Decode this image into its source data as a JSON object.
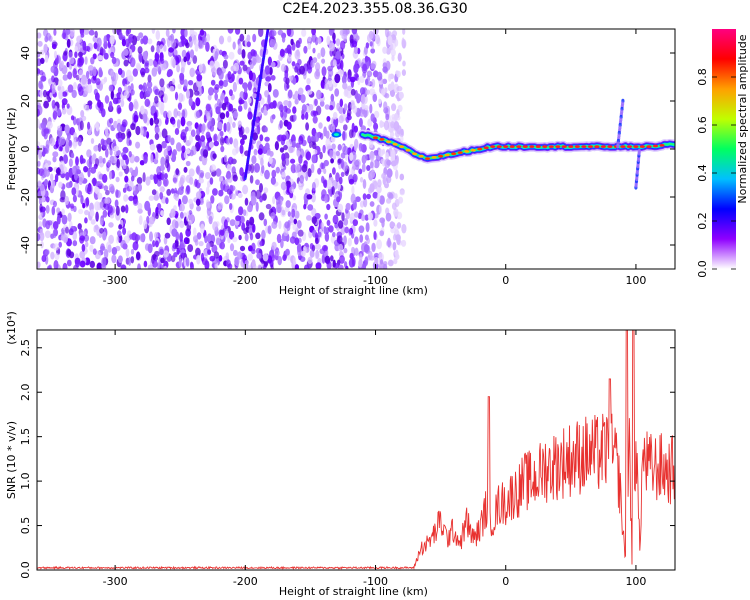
{
  "title": "C2E4.2023.355.08.36.G30",
  "chart_data": [
    {
      "type": "heatmap",
      "xlabel": "Height of straight line (km)",
      "ylabel": "Frequency (Hz)",
      "xlim": [
        -360,
        130
      ],
      "ylim": [
        -50,
        50
      ],
      "x_ticks": [
        -300,
        -200,
        -100,
        0,
        100
      ],
      "y_ticks": [
        -40,
        -20,
        0,
        20,
        40
      ],
      "colorbar": {
        "label": "Normalized spectral amplitude",
        "range": [
          0,
          1
        ],
        "ticks": [
          "0.0",
          "0.2",
          "0.4",
          "0.6",
          "0.8"
        ],
        "colormap": [
          "#ffffff",
          "#8f00ff",
          "#0000ff",
          "#00c0ff",
          "#00ff60",
          "#c0ff00",
          "#ffa000",
          "#ff0000",
          "#ff0080"
        ]
      },
      "features": {
        "noise_region_x": [
          -360,
          -90
        ],
        "signal_line": [
          [
            -110,
            6
          ],
          [
            -95,
            4
          ],
          [
            -80,
            1
          ],
          [
            -70,
            -2
          ],
          [
            -60,
            -4
          ],
          [
            -50,
            -3
          ],
          [
            -40,
            -2
          ],
          [
            -30,
            -1
          ],
          [
            -20,
            0
          ],
          [
            -10,
            1
          ],
          [
            0,
            1
          ],
          [
            20,
            1
          ],
          [
            40,
            1
          ],
          [
            60,
            1
          ],
          [
            80,
            1
          ],
          [
            95,
            1
          ],
          [
            110,
            1
          ],
          [
            130,
            2
          ]
        ],
        "spike_x": [
          90,
          100
        ]
      }
    },
    {
      "type": "line",
      "xlabel": "Height of straight line (km)",
      "ylabel": "SNR (10 * v/v)",
      "y_scale_label": "(x10⁴)",
      "xlim": [
        -360,
        130
      ],
      "ylim": [
        0,
        2.7
      ],
      "x_ticks": [
        -300,
        -200,
        -100,
        0,
        100
      ],
      "y_ticks": [
        "0.0",
        "0.5",
        "1.0",
        "1.5",
        "2.0",
        "2.5"
      ],
      "series": [
        {
          "color": "#e8312f",
          "x": [
            -360,
            -300,
            -250,
            -200,
            -150,
            -100,
            -80,
            -70,
            -65,
            -60,
            -55,
            -50,
            -45,
            -40,
            -35,
            -30,
            -25,
            -20,
            -15,
            -10,
            -5,
            0,
            5,
            10,
            15,
            20,
            25,
            30,
            35,
            40,
            50,
            60,
            70,
            80,
            85,
            88,
            90,
            92,
            95,
            97,
            100,
            103,
            105,
            110,
            115,
            120,
            125,
            130
          ],
          "y": [
            0.02,
            0.02,
            0.02,
            0.02,
            0.02,
            0.02,
            0.02,
            0.05,
            0.25,
            0.3,
            0.4,
            0.55,
            0.35,
            0.45,
            0.3,
            0.55,
            0.35,
            0.45,
            0.7,
            0.55,
            0.75,
            0.75,
            0.85,
            0.9,
            1.0,
            1.0,
            1.05,
            1.15,
            1.15,
            1.2,
            1.25,
            1.3,
            1.3,
            1.35,
            1.2,
            0.9,
            0.4,
            0.15,
            1.6,
            0.05,
            1.55,
            0.2,
            1.25,
            1.15,
            1.15,
            1.15,
            1.1,
            1.15
          ]
        }
      ]
    }
  ]
}
